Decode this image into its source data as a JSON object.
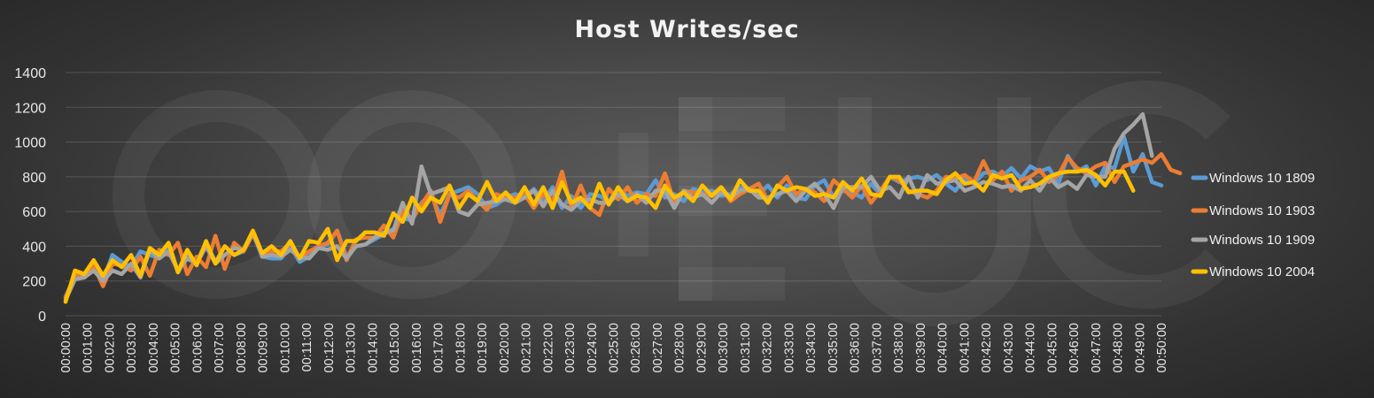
{
  "chart_data": {
    "type": "line",
    "title": "Host Writes/sec",
    "xlabel": "",
    "ylabel": "",
    "ylim": [
      0,
      1400
    ],
    "yticks": [
      0,
      200,
      400,
      600,
      800,
      1000,
      1200,
      1400
    ],
    "grid": true,
    "legend_position": "right",
    "x_tick_labels": [
      "00:00:00",
      "00:01:00",
      "00:02:00",
      "00:03:00",
      "00:04:00",
      "00:05:00",
      "00:06:00",
      "00:07:00",
      "00:08:00",
      "00:09:00",
      "00:10:00",
      "00:11:00",
      "00:12:00",
      "00:13:00",
      "00:14:00",
      "00:15:00",
      "00:16:00",
      "00:17:00",
      "00:18:00",
      "00:19:00",
      "00:20:00",
      "00:21:00",
      "00:22:00",
      "00:23:00",
      "00:24:00",
      "00:25:00",
      "00:26:00",
      "00:27:00",
      "00:28:00",
      "00:29:00",
      "00:30:00",
      "00:31:00",
      "00:32:00",
      "00:33:00",
      "00:34:00",
      "00:35:00",
      "00:36:00",
      "00:37:00",
      "00:38:00",
      "00:39:00",
      "00:40:00",
      "00:41:00",
      "00:42:00",
      "00:43:00",
      "00:44:00",
      "00:45:00",
      "00:46:00",
      "00:47:00",
      "00:48:00",
      "00:49:00",
      "00:50:00"
    ],
    "sample_interval_seconds": 30,
    "series": [
      {
        "name": "Windows 10 1809",
        "color": "#5b9bd5",
        "values": [
          110,
          230,
          240,
          300,
          200,
          350,
          310,
          280,
          370,
          350,
          330,
          410,
          250,
          350,
          310,
          420,
          310,
          400,
          350,
          370,
          480,
          340,
          330,
          330,
          400,
          310,
          340,
          400,
          410,
          490,
          340,
          400,
          410,
          440,
          470,
          500,
          560,
          550,
          650,
          700,
          580,
          700,
          720,
          740,
          700,
          620,
          640,
          680,
          700,
          680,
          730,
          660,
          740,
          620,
          690,
          620,
          700,
          690,
          660,
          730,
          690,
          710,
          700,
          780,
          680,
          700,
          660,
          730,
          710,
          720,
          690,
          700,
          740,
          720,
          700,
          750,
          680,
          750,
          680,
          670,
          750,
          780,
          680,
          720,
          710,
          680,
          760,
          700,
          800,
          770,
          790,
          800,
          780,
          810,
          760,
          720,
          790,
          760,
          820,
          830,
          800,
          850,
          790,
          860,
          830,
          850,
          760,
          920,
          830,
          860,
          750,
          860,
          850,
          1030,
          830,
          930,
          770,
          750
        ]
      },
      {
        "name": "Windows 10 1903",
        "color": "#ed7d31",
        "values": [
          100,
          240,
          230,
          290,
          170,
          300,
          290,
          260,
          340,
          230,
          380,
          350,
          420,
          240,
          340,
          280,
          460,
          270,
          420,
          370,
          470,
          350,
          370,
          370,
          420,
          330,
          370,
          400,
          420,
          490,
          320,
          440,
          450,
          450,
          520,
          450,
          600,
          560,
          640,
          720,
          540,
          700,
          680,
          720,
          660,
          610,
          700,
          680,
          680,
          700,
          620,
          700,
          660,
          830,
          620,
          750,
          620,
          580,
          730,
          670,
          740,
          650,
          700,
          690,
          820,
          650,
          720,
          710,
          700,
          690,
          740,
          660,
          700,
          730,
          760,
          660,
          740,
          800,
          700,
          730,
          710,
          660,
          780,
          730,
          680,
          750,
          650,
          720,
          800,
          780,
          720,
          700,
          680,
          720,
          800,
          790,
          810,
          770,
          890,
          780,
          830,
          720,
          780,
          800,
          840,
          770,
          810,
          910,
          850,
          820,
          860,
          880,
          770,
          860,
          880,
          900,
          880,
          930,
          840,
          820
        ]
      },
      {
        "name": "Windows 10 1909",
        "color": "#a5a5a5",
        "values": [
          90,
          210,
          220,
          260,
          200,
          260,
          240,
          300,
          220,
          380,
          330,
          370,
          260,
          330,
          300,
          400,
          300,
          350,
          390,
          380,
          480,
          340,
          350,
          340,
          380,
          340,
          330,
          390,
          380,
          400,
          330,
          400,
          410,
          450,
          480,
          490,
          650,
          530,
          860,
          700,
          720,
          740,
          600,
          580,
          640,
          650,
          660,
          670,
          650,
          680,
          720,
          630,
          720,
          640,
          610,
          660,
          670,
          650,
          650,
          700,
          660,
          700,
          650,
          720,
          720,
          620,
          720,
          680,
          700,
          650,
          710,
          680,
          720,
          730,
          680,
          680,
          700,
          720,
          660,
          720,
          760,
          700,
          620,
          740,
          740,
          740,
          800,
          720,
          740,
          680,
          800,
          680,
          810,
          760,
          770,
          780,
          720,
          740,
          770,
          760,
          740,
          750,
          720,
          780,
          720,
          800,
          740,
          770,
          730,
          810,
          800,
          800,
          960,
          1050,
          1100,
          1160,
          920
        ]
      },
      {
        "name": "Windows 10 2004",
        "color": "#ffc000",
        "values": [
          80,
          260,
          240,
          320,
          230,
          320,
          280,
          350,
          230,
          390,
          350,
          420,
          250,
          380,
          290,
          430,
          300,
          400,
          350,
          380,
          490,
          360,
          400,
          350,
          430,
          330,
          430,
          420,
          500,
          320,
          430,
          430,
          480,
          480,
          460,
          590,
          540,
          680,
          600,
          680,
          650,
          750,
          620,
          700,
          660,
          770,
          660,
          710,
          650,
          740,
          640,
          740,
          620,
          770,
          650,
          680,
          620,
          760,
          640,
          740,
          660,
          690,
          680,
          620,
          750,
          680,
          710,
          660,
          750,
          690,
          740,
          670,
          780,
          720,
          720,
          650,
          750,
          720,
          740,
          730,
          690,
          700,
          680,
          770,
          720,
          790,
          700,
          690,
          800,
          800,
          710,
          720,
          720,
          700,
          780,
          820,
          760,
          770,
          720,
          810,
          790,
          810,
          730,
          740,
          760,
          800,
          820,
          830,
          830,
          840,
          810,
          750,
          830,
          830,
          720
        ]
      }
    ]
  },
  "legend": [
    {
      "label": "Windows 10 1809",
      "color": "#5b9bd5"
    },
    {
      "label": "Windows 10 1903",
      "color": "#ed7d31"
    },
    {
      "label": "Windows 10 1909",
      "color": "#a5a5a5"
    },
    {
      "label": "Windows 10 2004",
      "color": "#ffc000"
    }
  ]
}
